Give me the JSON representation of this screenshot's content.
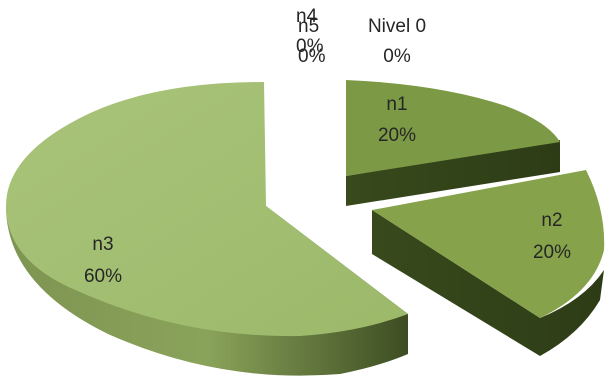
{
  "chart_data": {
    "type": "pie",
    "style": "3d-exploded",
    "title": "",
    "categories": [
      "Nivel 0",
      "n1",
      "n2",
      "n3",
      "n4",
      "n5"
    ],
    "values": [
      0,
      20,
      20,
      60,
      0,
      0
    ],
    "percent_labels": [
      "0%",
      "20%",
      "20%",
      "60%",
      "0%",
      "0%"
    ],
    "legend": "none",
    "colors": [
      "#7a9a3e",
      "#7c9a45",
      "#86a34b",
      "#a4c072",
      "#7a9a3e",
      "#7a9a3e"
    ]
  }
}
